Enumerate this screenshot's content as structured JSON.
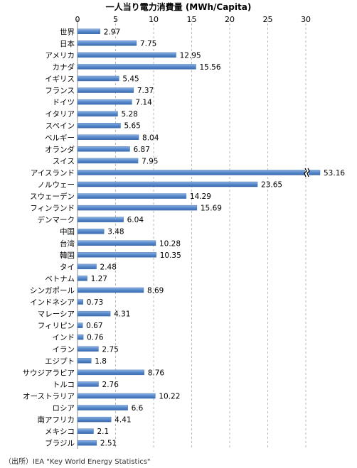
{
  "chart_data": {
    "type": "bar",
    "orientation": "horizontal",
    "title": "一人当り電力消費量 (MWh/Capita)",
    "x_ticks": [
      0,
      5,
      10,
      15,
      20,
      25,
      30
    ],
    "xlim": [
      0,
      30
    ],
    "grid": "vertical dashed",
    "axis_break_value": 53.16,
    "categories": [
      "世界",
      "日本",
      "アメリカ",
      "カナダ",
      "イギリス",
      "フランス",
      "ドイツ",
      "イタリア",
      "スペイン",
      "ベルギー",
      "オランダ",
      "スイス",
      "アイスランド",
      "ノルウェー",
      "スウェーデン",
      "フィンランド",
      "デンマーク",
      "中国",
      "台湾",
      "韓国",
      "タイ",
      "ベトナム",
      "シンガポール",
      "インドネシア",
      "マレーシア",
      "フィリピン",
      "インド",
      "イラン",
      "エジプト",
      "サウジアラビア",
      "トルコ",
      "オーストラリア",
      "ロシア",
      "南アフリカ",
      "メキシコ",
      "ブラジル"
    ],
    "values": [
      2.97,
      7.75,
      12.95,
      15.56,
      5.45,
      7.37,
      7.14,
      5.28,
      5.65,
      8.04,
      6.87,
      7.95,
      53.16,
      23.65,
      14.29,
      15.69,
      6.04,
      3.48,
      10.28,
      10.35,
      2.48,
      1.27,
      8.69,
      0.73,
      4.31,
      0.67,
      0.76,
      2.75,
      1.8,
      8.76,
      2.76,
      10.22,
      6.6,
      4.41,
      2.1,
      2.51
    ],
    "value_labels": [
      "2.97",
      "7.75",
      "12.95",
      "15.56",
      "5.45",
      "7.37",
      "7.14",
      "5.28",
      "5.65",
      "8.04",
      "6.87",
      "7.95",
      "53.16",
      "23.65",
      "14.29",
      "15.69",
      "6.04",
      "3.48",
      "10.28",
      "10.35",
      "2.48",
      "1.27",
      "8.69",
      "0.73",
      "4.31",
      "0.67",
      "0.76",
      "2.75",
      "1.8",
      "8.76",
      "2.76",
      "10.22",
      "6.6",
      "4.41",
      "2.1",
      "2.51"
    ],
    "bar_color": "#4a7ebf",
    "source": "（出所）IEA \"Key World Energy Statistics\""
  }
}
